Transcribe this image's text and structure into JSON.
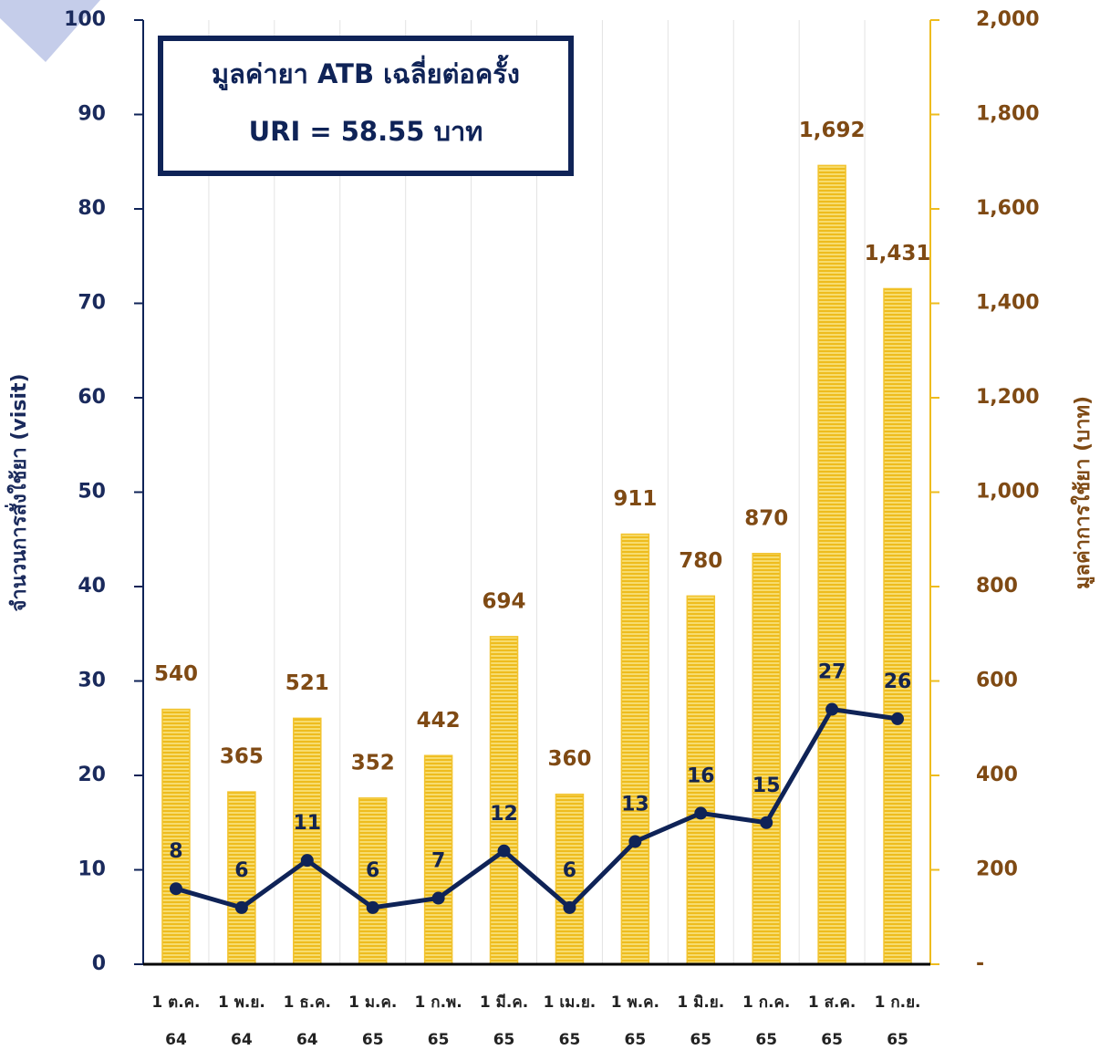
{
  "chart_data": {
    "type": "bar",
    "annotations": [
      "มูลค่ายา ATB เฉลี่ยต่อครั้ง",
      "URI = 58.55 บาท"
    ],
    "ylabel": "จำนวนการสั่งใช้ยา (visit)",
    "y2label": "มูลค่าการใช้ยา (บาท)",
    "categories": [
      [
        "1 ต.ค.",
        "64"
      ],
      [
        "1 พ.ย.",
        "64"
      ],
      [
        "1 ธ.ค.",
        "64"
      ],
      [
        "1 ม.ค.",
        "65"
      ],
      [
        "1 ก.พ.",
        "65"
      ],
      [
        "1 มี.ค.",
        "65"
      ],
      [
        "1 เม.ย.",
        "65"
      ],
      [
        "1 พ.ค.",
        "65"
      ],
      [
        "1 มิ.ย.",
        "65"
      ],
      [
        "1 ก.ค.",
        "65"
      ],
      [
        "1 ส.ค.",
        "65"
      ],
      [
        "1 ก.ย.",
        "65"
      ]
    ],
    "series": [
      {
        "type": "bar",
        "axis": "y2",
        "color": "#f2c32e",
        "values": [
          540,
          365,
          521,
          352,
          442,
          694,
          360,
          911,
          780,
          870,
          1692,
          1431
        ],
        "value_labels": [
          "540",
          "365",
          "521",
          "352",
          "442",
          "694",
          "360",
          "911",
          "780",
          "870",
          "1,692",
          "1,431"
        ]
      },
      {
        "type": "line",
        "axis": "y",
        "color": "#0f2357",
        "values": [
          8,
          6,
          11,
          6,
          7,
          12,
          6,
          13,
          16,
          15,
          27,
          26
        ]
      }
    ],
    "ylim": [
      0,
      100
    ],
    "yticks": [
      0,
      10,
      20,
      30,
      40,
      50,
      60,
      70,
      80,
      90,
      100
    ],
    "y2lim": [
      0,
      2000
    ],
    "y2ticks": [
      {
        "value": 0,
        "label": "-"
      },
      200,
      400,
      600,
      800,
      {
        "value": 1000,
        "label": "1,000"
      },
      {
        "value": 1200,
        "label": "1,200"
      },
      {
        "value": 1400,
        "label": "1,400"
      },
      {
        "value": 1600,
        "label": "1,600"
      },
      {
        "value": 1800,
        "label": "1,800"
      },
      {
        "value": 2000,
        "label": "2,000"
      }
    ]
  }
}
